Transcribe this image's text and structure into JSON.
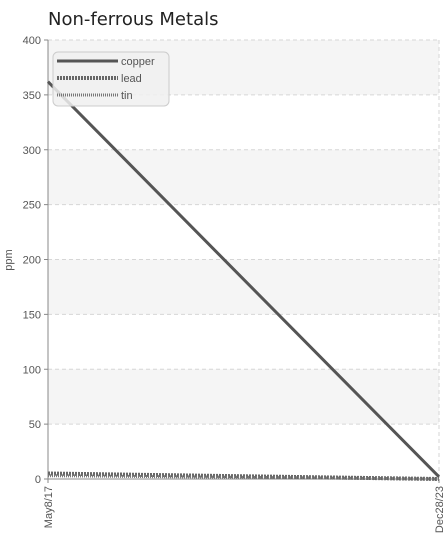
{
  "chart_data": {
    "type": "line",
    "title": "Non-ferrous Metals",
    "ylabel": "ppm",
    "xlabel": "",
    "x_ticks": [
      "May8/17",
      "Dec28/23"
    ],
    "x": [
      "May8/17",
      "Dec28/23"
    ],
    "ylim": [
      0,
      400
    ],
    "y_ticks": [
      0,
      50,
      100,
      150,
      200,
      250,
      300,
      350,
      400
    ],
    "grid": true,
    "legend_position": "top-left",
    "series": [
      {
        "name": "copper",
        "values": [
          362,
          2
        ],
        "style": "solid",
        "color": "#555555"
      },
      {
        "name": "lead",
        "values": [
          5,
          0
        ],
        "style": "dashed",
        "color": "#666666"
      },
      {
        "name": "tin",
        "values": [
          3,
          0
        ],
        "style": "dotted",
        "color": "#777777"
      }
    ]
  }
}
